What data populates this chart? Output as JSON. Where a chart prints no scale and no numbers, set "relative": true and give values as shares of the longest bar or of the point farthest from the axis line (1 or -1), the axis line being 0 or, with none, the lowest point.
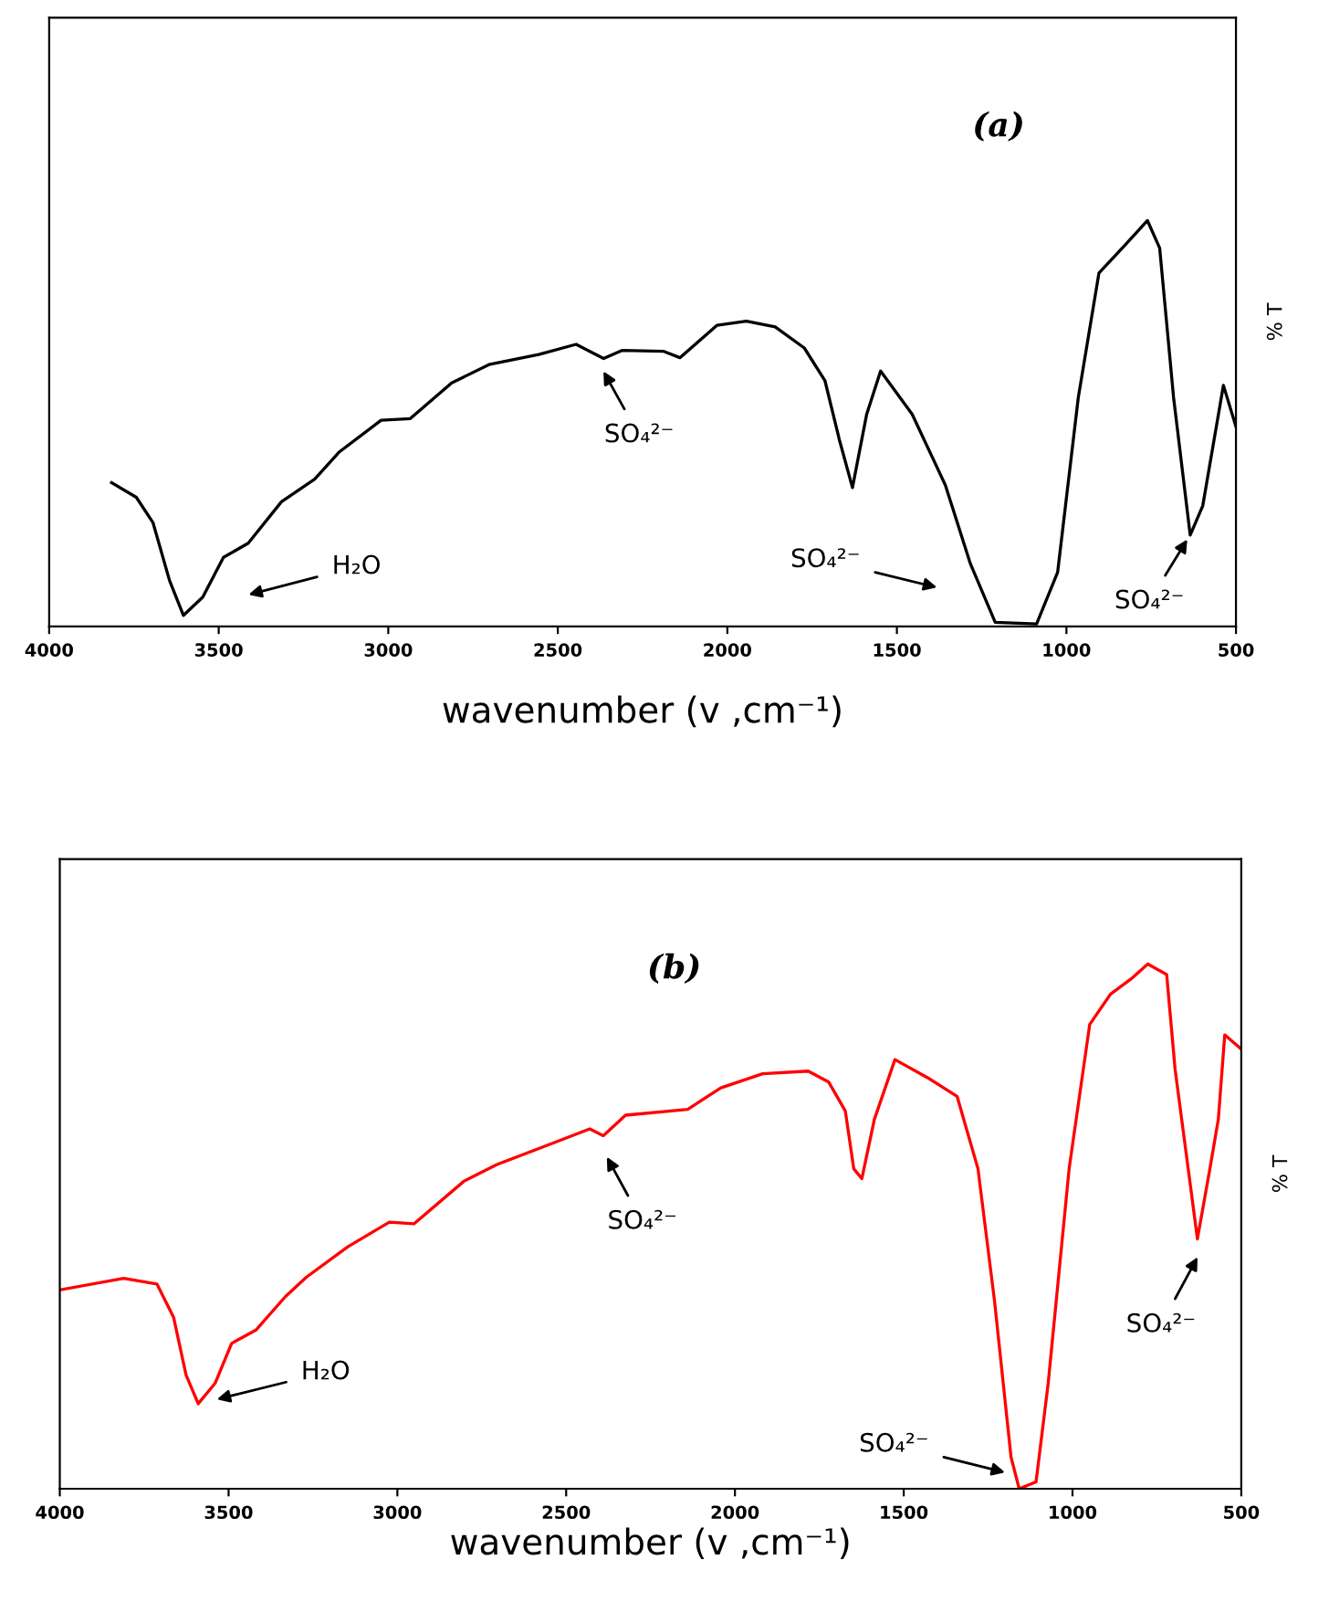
{
  "chart_data": [
    {
      "type": "line",
      "title": "(a)",
      "xlabel": "wavenumber (v ,cm⁻¹)",
      "ylabel": "% T",
      "relative": true,
      "xlim": [
        4000,
        500
      ],
      "xticks": [
        4000,
        3500,
        3000,
        2500,
        2000,
        1500,
        1000,
        500
      ],
      "tick_labels": "x",
      "series": [
        {
          "color": "#000000",
          "x": [
            3816,
            3743,
            3694,
            3645,
            3604,
            3547,
            3486,
            3413,
            3315,
            3217,
            3144,
            3021,
            2935,
            2813,
            2703,
            2556,
            2446,
            2365,
            2311,
            2189,
            2140,
            2030,
            1944,
            1859,
            1773,
            1712,
            1670,
            1631,
            1589,
            1548,
            1455,
            1357,
            1283,
            1210,
            1088,
            1026,
            965,
            904,
            831,
            761,
            725,
            684,
            635,
            598,
            537,
            500
          ],
          "values": [
            0.354,
            0.318,
            0.256,
            0.113,
            0.027,
            0.072,
            0.17,
            0.205,
            0.307,
            0.363,
            0.43,
            0.508,
            0.512,
            0.6,
            0.645,
            0.67,
            0.695,
            0.66,
            0.68,
            0.678,
            0.662,
            0.742,
            0.752,
            0.738,
            0.686,
            0.605,
            0.461,
            0.342,
            0.523,
            0.629,
            0.523,
            0.348,
            0.154,
            0.01,
            0.006,
            0.133,
            0.564,
            0.871,
            0.936,
            1.0,
            0.932,
            0.564,
            0.225,
            0.297,
            0.594,
            0.492
          ]
        }
      ],
      "annotations": [
        "H₂O",
        "SO₄²⁻",
        "SO₄²⁻",
        "SO₄²⁻"
      ]
    },
    {
      "type": "line",
      "title": "(b)",
      "xlabel": "wavenumber (v ,cm⁻¹)",
      "ylabel": "% T",
      "relative": true,
      "xlim": [
        4000,
        500
      ],
      "xticks": [
        4000,
        3500,
        3000,
        2500,
        2000,
        1500,
        1000,
        500
      ],
      "tick_labels": "x",
      "series": [
        {
          "color": "#ff0000",
          "x": [
            4000,
            3811,
            3712,
            3663,
            3626,
            3590,
            3540,
            3491,
            3418,
            3332,
            3270,
            3147,
            3024,
            2951,
            2803,
            2705,
            2558,
            2430,
            2390,
            2324,
            2140,
            2042,
            1918,
            1783,
            1722,
            1673,
            1648,
            1624,
            1587,
            1526,
            1428,
            1342,
            1280,
            1231,
            1182,
            1158,
            1108,
            1072,
            1010,
            949,
            887,
            826,
            777,
            721,
            696,
            654,
            630,
            593,
            568,
            549,
            500
          ],
          "values": [
            0.379,
            0.401,
            0.39,
            0.327,
            0.217,
            0.162,
            0.201,
            0.277,
            0.303,
            0.366,
            0.403,
            0.461,
            0.508,
            0.505,
            0.586,
            0.618,
            0.654,
            0.686,
            0.673,
            0.712,
            0.723,
            0.764,
            0.791,
            0.796,
            0.775,
            0.72,
            0.61,
            0.591,
            0.704,
            0.818,
            0.783,
            0.748,
            0.61,
            0.358,
            0.06,
            0.0,
            0.013,
            0.201,
            0.61,
            0.885,
            0.943,
            0.972,
            1.0,
            0.98,
            0.799,
            0.594,
            0.476,
            0.61,
            0.704,
            0.865,
            0.838
          ]
        }
      ],
      "annotations": [
        "H₂O",
        "SO₄²⁻",
        "SO₄²⁻",
        "SO₄²⁻"
      ]
    }
  ]
}
